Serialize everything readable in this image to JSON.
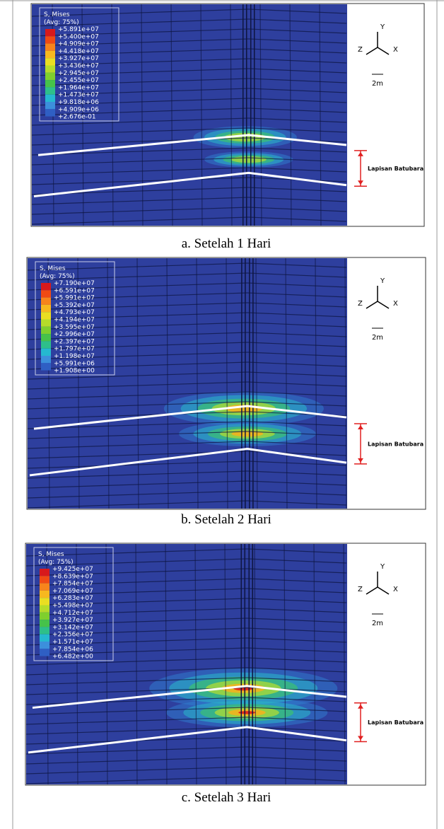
{
  "panels": [
    {
      "legend_title": "S, Mises",
      "legend_subtitle": "(Avg: 75%)",
      "legend_labels": [
        "+5.891e+07",
        "+5.400e+07",
        "+4.909e+07",
        "+4.418e+07",
        "+3.927e+07",
        "+3.436e+07",
        "+2.945e+07",
        "+2.455e+07",
        "+1.964e+07",
        "+1.473e+07",
        "+9.818e+06",
        "+4.909e+06",
        "+2.676e-01"
      ],
      "axes": {
        "y": "Y",
        "z": "Z",
        "x": "X"
      },
      "scale": "2m",
      "annotation": "Lapisan Batubara",
      "caption": "a.  Setelah 1 Hari"
    },
    {
      "legend_title": "S, Mises",
      "legend_subtitle": "(Avg: 75%)",
      "legend_labels": [
        "+7.190e+07",
        "+6.591e+07",
        "+5.991e+07",
        "+5.392e+07",
        "+4.793e+07",
        "+4.194e+07",
        "+3.595e+07",
        "+2.996e+07",
        "+2.397e+07",
        "+1.797e+07",
        "+1.198e+07",
        "+5.991e+06",
        "+1.908e+00"
      ],
      "axes": {
        "y": "Y",
        "z": "Z",
        "x": "X"
      },
      "scale": "2m",
      "annotation": "Lapisan Batubara",
      "caption": "b.  Setelah 2 Hari"
    },
    {
      "legend_title": "S, Mises",
      "legend_subtitle": "(Avg: 75%)",
      "legend_labels": [
        "+9.425e+07",
        "+8.639e+07",
        "+7.854e+07",
        "+7.069e+07",
        "+6.283e+07",
        "+5.498e+07",
        "+4.712e+07",
        "+3.927e+07",
        "+3.142e+07",
        "+2.356e+07",
        "+1.571e+07",
        "+7.854e+06",
        "+6.482e+00"
      ],
      "axes": {
        "y": "Y",
        "z": "Z",
        "x": "X"
      },
      "scale": "2m",
      "annotation": "Lapisan Batubara",
      "caption": "c.  Setelah 3 Hari"
    }
  ]
}
